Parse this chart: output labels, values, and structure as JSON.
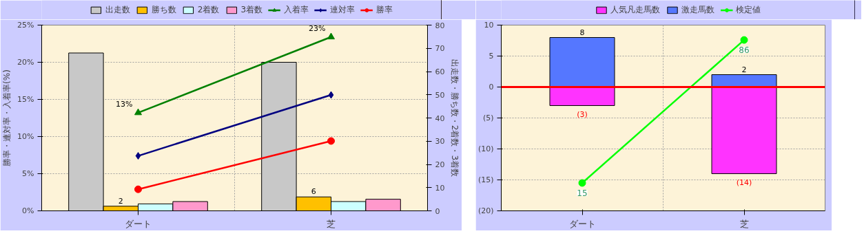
{
  "chart_data": [
    {
      "type": "bar",
      "categories": [
        "ダート",
        "芝"
      ],
      "ylabel": "勝率・連対率・入着率(%)",
      "y2label": "出走数・勝ち数・2着数・3着数",
      "ylim": [
        0,
        25
      ],
      "yticks": [
        {
          "value": 0,
          "label": "0%"
        },
        {
          "value": 5,
          "label": "5%"
        },
        {
          "value": 10,
          "label": "10%"
        },
        {
          "value": 15,
          "label": "15%"
        },
        {
          "value": 20,
          "label": "20%"
        },
        {
          "value": 25,
          "label": "25%"
        }
      ],
      "y2lim": [
        0,
        80
      ],
      "y2ticks": [
        0,
        10,
        20,
        30,
        40,
        50,
        60,
        70,
        80
      ],
      "grid": true,
      "legend": "top",
      "series": [
        {
          "name": "出走数",
          "axis": "y2",
          "color": "#c8c8c8",
          "values": [
            68,
            64
          ]
        },
        {
          "name": "勝ち数",
          "axis": "y2",
          "color": "#ffc000",
          "values": [
            2,
            6
          ],
          "value_labels": [
            "2",
            "6"
          ]
        },
        {
          "name": "2着数",
          "axis": "y2",
          "color": "#ccffff",
          "values": [
            3,
            4
          ]
        },
        {
          "name": "3着数",
          "axis": "y2",
          "color": "#ff99cc",
          "values": [
            4,
            5
          ]
        },
        {
          "name": "入着率",
          "type": "line",
          "color": "#008000",
          "marker": "triangle",
          "values": [
            13.2,
            23.4
          ],
          "value_labels": [
            "13%",
            "23%"
          ]
        },
        {
          "name": "連対率",
          "type": "line",
          "color": "#000080",
          "marker": "diamond",
          "values": [
            7.4,
            15.6
          ]
        },
        {
          "name": "勝率",
          "type": "line",
          "color": "#ff0000",
          "marker": "circle",
          "values": [
            2.9,
            9.4
          ]
        }
      ]
    },
    {
      "type": "bar",
      "stacked": true,
      "categories": [
        "ダート",
        "芝"
      ],
      "ylim": [
        -20,
        10
      ],
      "yticks": [
        10,
        5,
        0,
        {
          "value": -5,
          "label": "(5)"
        },
        {
          "value": -10,
          "label": "(10)"
        },
        {
          "value": -15,
          "label": "(15)"
        },
        {
          "value": -20,
          "label": "(20)"
        }
      ],
      "grid": true,
      "legend": "top",
      "ref_lines": [
        {
          "axis": "y",
          "value": 0,
          "color": "#ff0000"
        }
      ],
      "series": [
        {
          "name": "人気凡走馬数",
          "color": "#ff33ff",
          "values": [
            -3,
            -14
          ],
          "value_labels": [
            "(3)",
            "(14)"
          ]
        },
        {
          "name": "激走馬数",
          "color": "#5577ff",
          "values": [
            8,
            2
          ],
          "value_labels": [
            "8",
            "2"
          ]
        },
        {
          "name": "検定値",
          "type": "line",
          "color": "#00ff00",
          "marker": "circle",
          "values": [
            -15.5,
            7.6
          ]
        }
      ],
      "annotations": [
        {
          "text": "15",
          "x": "ダート",
          "y": -15.5
        },
        {
          "text": "86",
          "x": "芝",
          "y": 7.6
        }
      ]
    }
  ]
}
